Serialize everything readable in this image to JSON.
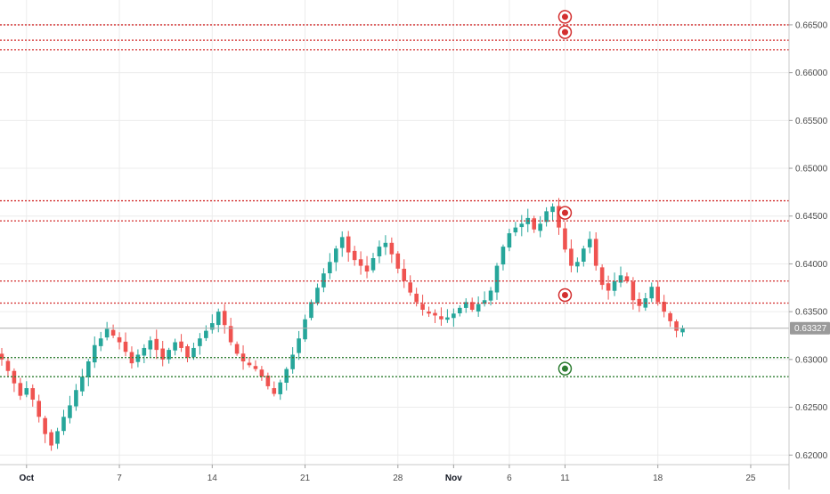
{
  "chart_data": {
    "type": "candlestick",
    "x_axis": {
      "ticks": [
        {
          "label": "Oct",
          "bar": 4,
          "bold": true
        },
        {
          "label": "7",
          "bar": 19,
          "bold": false
        },
        {
          "label": "14",
          "bar": 34,
          "bold": false
        },
        {
          "label": "21",
          "bar": 49,
          "bold": false
        },
        {
          "label": "28",
          "bar": 64,
          "bold": false
        },
        {
          "label": "Nov",
          "bar": 73,
          "bold": true
        },
        {
          "label": "6",
          "bar": 82,
          "bold": false
        },
        {
          "label": "11",
          "bar": 91,
          "bold": false
        },
        {
          "label": "18",
          "bar": 106,
          "bold": false
        },
        {
          "label": "25",
          "bar": 121,
          "bold": false
        }
      ]
    },
    "y_axis": {
      "ticks": [
        "0.66500",
        "0.66000",
        "0.65500",
        "0.65000",
        "0.64500",
        "0.64000",
        "0.63500",
        "0.63000",
        "0.62500",
        "0.62000"
      ],
      "ylim": [
        0.619,
        0.6676
      ]
    },
    "last_price": {
      "label": "0.63327",
      "value": 0.63327
    },
    "levels": [
      {
        "value": 0.665,
        "color": "#d32f2f",
        "kind": "resistance",
        "marker": true
      },
      {
        "value": 0.6634,
        "color": "#d32f2f",
        "kind": "resistance",
        "marker": true
      },
      {
        "value": 0.6624,
        "color": "#d32f2f",
        "kind": "resistance",
        "marker": false
      },
      {
        "value": 0.6466,
        "color": "#d32f2f",
        "kind": "resistance",
        "marker": false
      },
      {
        "value": 0.6445,
        "color": "#d32f2f",
        "kind": "resistance",
        "marker": true
      },
      {
        "value": 0.6382,
        "color": "#d32f2f",
        "kind": "resistance",
        "marker": false
      },
      {
        "value": 0.6359,
        "color": "#d32f2f",
        "kind": "resistance",
        "marker": true
      },
      {
        "value": 0.6302,
        "color": "#2e7d32",
        "kind": "support",
        "marker": false
      },
      {
        "value": 0.6282,
        "color": "#2e7d32",
        "kind": "support",
        "marker": true
      }
    ],
    "colors": {
      "up": "#26a69a",
      "down": "#ef5350",
      "grid": "#ececec",
      "axis": "#4a4a4a"
    },
    "closes": [
      0.63,
      0.6288,
      0.6275,
      0.6262,
      0.627,
      0.6258,
      0.624,
      0.6222,
      0.621,
      0.6225,
      0.624,
      0.6252,
      0.6268,
      0.6282,
      0.6298,
      0.6315,
      0.6322,
      0.6332,
      0.6325,
      0.6318,
      0.6308,
      0.6296,
      0.6305,
      0.6312,
      0.632,
      0.631,
      0.63,
      0.631,
      0.6318,
      0.6312,
      0.6302,
      0.6312,
      0.6322,
      0.633,
      0.6338,
      0.635,
      0.6336,
      0.6318,
      0.6306,
      0.6298,
      0.6294,
      0.629,
      0.6282,
      0.6272,
      0.6264,
      0.6276,
      0.629,
      0.6305,
      0.6322,
      0.6342,
      0.636,
      0.6375,
      0.639,
      0.6402,
      0.6416,
      0.6428,
      0.6412,
      0.6404,
      0.6398,
      0.6392,
      0.6406,
      0.6418,
      0.6422,
      0.641,
      0.6395,
      0.6382,
      0.637,
      0.636,
      0.6352,
      0.6348,
      0.6346,
      0.6342,
      0.6344,
      0.6348,
      0.6354,
      0.636,
      0.6352,
      0.6358,
      0.6362,
      0.6372,
      0.6398,
      0.6418,
      0.6432,
      0.6438,
      0.6442,
      0.6448,
      0.6436,
      0.6442,
      0.6455,
      0.646,
      0.6438,
      0.6415,
      0.6398,
      0.6402,
      0.6416,
      0.6426,
      0.6398,
      0.6378,
      0.6372,
      0.6382,
      0.6388,
      0.6382,
      0.6362,
      0.6356,
      0.6364,
      0.6376,
      0.636,
      0.635,
      0.634,
      0.633,
      0.6333
    ]
  }
}
